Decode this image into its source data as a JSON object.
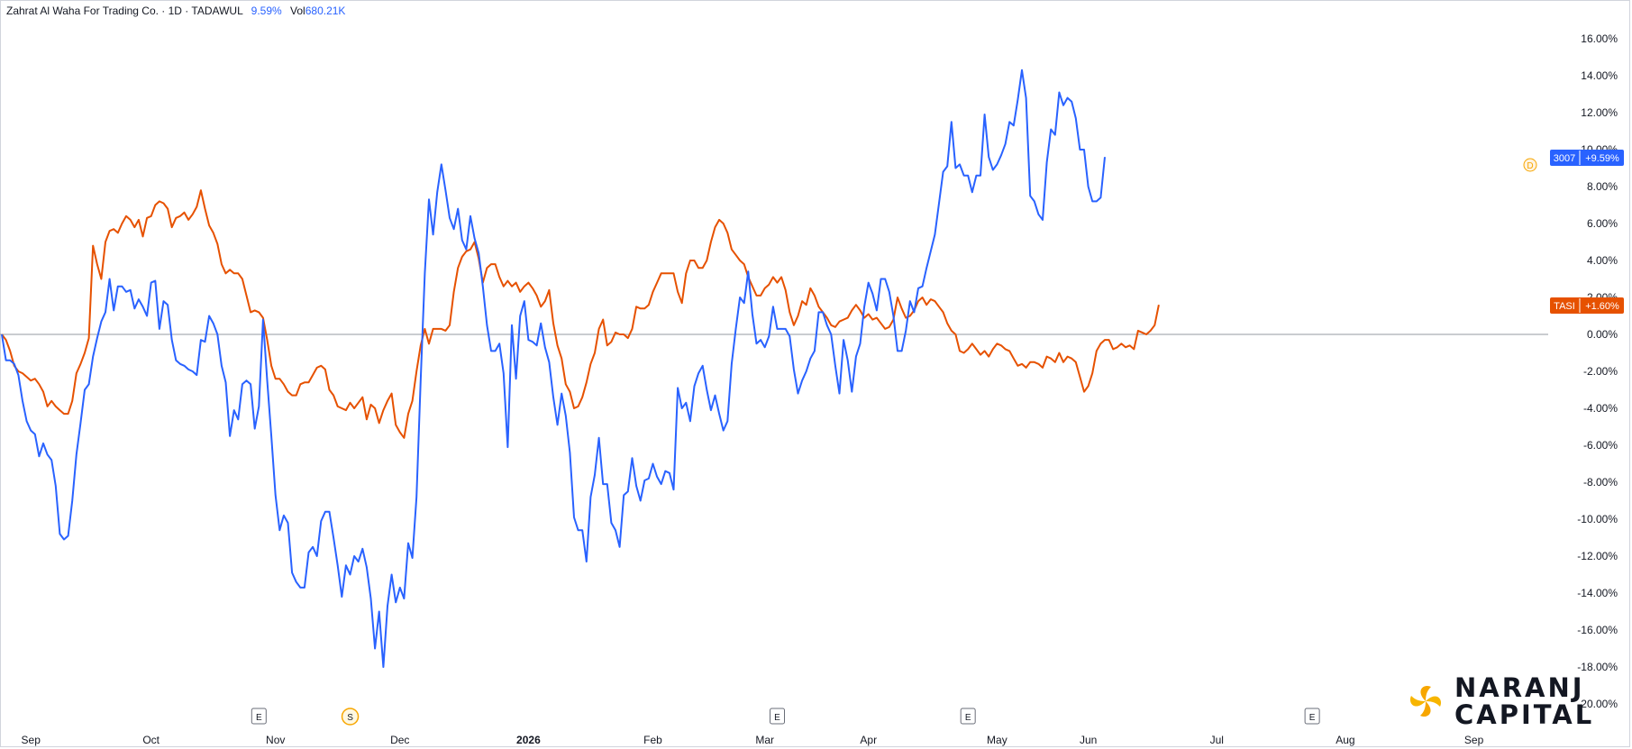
{
  "header": {
    "symbol": "Zahrat Al Waha For Trading Co. · 1D · TADAWUL",
    "change": "9.59%",
    "volume_label": "Vol",
    "volume": "680.21K"
  },
  "tags": {
    "main": {
      "name": "3007",
      "value": "+9.59%",
      "color": "#2962ff"
    },
    "compare": {
      "name": "TASI",
      "value": "+1.60%",
      "color": "#e65100"
    },
    "marker": "D"
  },
  "logo": {
    "line1": "NARANJ",
    "line2": "CAPITAL"
  },
  "colors": {
    "main": "#2962ff",
    "compare": "#e65100",
    "zero_line": "#9598a1",
    "event": "#f7a600"
  },
  "events": [
    {
      "label": "E",
      "x_index": 62
    },
    {
      "label": "S",
      "x_index": 84,
      "color": "#f7a600"
    },
    {
      "label": "E",
      "x_index": 187
    },
    {
      "label": "E",
      "x_index": 233
    },
    {
      "label": "E",
      "x_index": 316
    }
  ],
  "chart_data": {
    "type": "line",
    "ylim": [
      -20,
      16
    ],
    "y_ticks": [
      "16.00%",
      "14.00%",
      "12.00%",
      "10.00%",
      "8.00%",
      "6.00%",
      "4.00%",
      "2.00%",
      "0.00%",
      "-2.00%",
      "-4.00%",
      "-6.00%",
      "-8.00%",
      "-10.00%",
      "-12.00%",
      "-14.00%",
      "-16.00%",
      "-18.00%",
      "-20.00%"
    ],
    "x_ticks": [
      {
        "label": "Sep",
        "index": 7
      },
      {
        "label": "Oct",
        "index": 36
      },
      {
        "label": "Nov",
        "index": 66
      },
      {
        "label": "Dec",
        "index": 96
      },
      {
        "label": "2026",
        "index": 127,
        "bold": true
      },
      {
        "label": "Feb",
        "index": 157
      },
      {
        "label": "Mar",
        "index": 184
      },
      {
        "label": "Apr",
        "index": 209
      },
      {
        "label": "May",
        "index": 240
      },
      {
        "label": "Jun",
        "index": 262
      },
      {
        "label": "Jul",
        "index": 293
      },
      {
        "label": "Aug",
        "index": 324
      },
      {
        "label": "Sep",
        "index": 355
      }
    ],
    "series": [
      {
        "name": "3007",
        "values": [
          0,
          -1.4,
          -1.4,
          -1.6,
          -2.2,
          -3.6,
          -4.7,
          -5.2,
          -5.4,
          -6.6,
          -5.9,
          -6.5,
          -6.8,
          -8.2,
          -10.8,
          -11.1,
          -10.9,
          -9.0,
          -6.5,
          -4.8,
          -3.0,
          -2.7,
          -1.2,
          -0.2,
          0.7,
          1.2,
          3.0,
          1.3,
          2.6,
          2.6,
          2.3,
          2.4,
          1.4,
          1.9,
          1.5,
          1.0,
          2.8,
          2.9,
          0.3,
          1.8,
          1.6,
          -0.3,
          -1.4,
          -1.6,
          -1.7,
          -1.9,
          -2.0,
          -2.2,
          -0.3,
          -0.4,
          1.0,
          0.6,
          0.0,
          -1.7,
          -2.6,
          -5.5,
          -4.1,
          -4.6,
          -2.7,
          -2.5,
          -2.7,
          -5.1,
          -3.9,
          0.8,
          -2.5,
          -5.5,
          -8.7,
          -10.6,
          -9.8,
          -10.2,
          -12.9,
          -13.4,
          -13.7,
          -13.7,
          -11.8,
          -11.5,
          -12.0,
          -10.1,
          -9.6,
          -9.6,
          -11.0,
          -12.5,
          -14.2,
          -12.5,
          -13.0,
          -12.0,
          -12.3,
          -11.6,
          -12.6,
          -14.3,
          -17.0,
          -15.0,
          -18.0,
          -14.7,
          -13.0,
          -14.5,
          -13.7,
          -14.3,
          -11.3,
          -12.1,
          -8.8,
          -2.5,
          3.3,
          7.3,
          5.4,
          7.7,
          9.2,
          7.8,
          6.3,
          5.7,
          6.8,
          5.1,
          4.6,
          6.4,
          5.2,
          4.4,
          2.6,
          0.5,
          -0.9,
          -0.9,
          -0.5,
          -2.1,
          -6.1,
          0.5,
          -2.4,
          1.0,
          1.8,
          -0.3,
          -0.4,
          -0.6,
          0.6,
          -0.7,
          -1.5,
          -3.4,
          -4.9,
          -3.2,
          -4.4,
          -6.4,
          -9.9,
          -10.6,
          -10.6,
          -12.3,
          -8.8,
          -7.6,
          -5.6,
          -8.1,
          -8.1,
          -10.2,
          -10.6,
          -11.5,
          -8.7,
          -8.5,
          -6.7,
          -8.2,
          -9.0,
          -7.9,
          -7.8,
          -7.0,
          -7.7,
          -8.1,
          -7.4,
          -7.5,
          -8.4,
          -2.9,
          -4.0,
          -3.7,
          -4.7,
          -2.8,
          -2.1,
          -1.7,
          -3.0,
          -4.1,
          -3.3,
          -4.3,
          -5.2,
          -4.7,
          -1.6,
          0.3,
          2.0,
          1.7,
          3.4,
          1.1,
          -0.5,
          -0.3,
          -0.7,
          -0.1,
          1.5,
          0.3,
          0.3,
          0.3,
          -0.1,
          -1.9,
          -3.2,
          -2.5,
          -2.0,
          -1.3,
          -0.9,
          1.2,
          1.2,
          0.5,
          0.0,
          -1.7,
          -3.2,
          -0.3,
          -1.4,
          -3.1,
          -1.2,
          -0.5,
          1.5,
          2.8,
          2.2,
          1.3,
          3.0,
          3.0,
          2.3,
          1.0,
          -0.9,
          -0.9,
          0.2,
          1.8,
          1.2,
          2.5,
          2.6,
          3.6,
          4.5,
          5.4,
          7.1,
          8.8,
          9.1,
          11.5,
          9.0,
          9.2,
          8.6,
          8.6,
          7.7,
          8.6,
          8.6,
          11.9,
          9.6,
          8.9,
          9.2,
          9.7,
          10.3,
          11.5,
          11.3,
          12.7,
          14.3,
          12.8,
          7.5,
          7.2,
          6.5,
          6.2,
          9.3,
          11.1,
          10.8,
          13.1,
          12.4,
          12.8,
          12.6,
          11.7,
          10.0,
          10.0,
          8.0,
          7.2,
          7.2,
          7.4,
          9.6
        ],
        "color": "#2962ff"
      },
      {
        "name": "TASI",
        "values": [
          0,
          -0.3,
          -0.9,
          -1.7,
          -2.0,
          -2.1,
          -2.3,
          -2.5,
          -2.4,
          -2.7,
          -3.1,
          -3.9,
          -3.6,
          -3.9,
          -4.1,
          -4.3,
          -4.3,
          -3.6,
          -2.1,
          -1.6,
          -1.0,
          -0.2,
          4.8,
          3.8,
          3.0,
          5.0,
          5.6,
          5.7,
          5.5,
          6.0,
          6.4,
          6.2,
          5.8,
          6.2,
          5.3,
          6.3,
          6.4,
          7.0,
          7.2,
          7.1,
          6.8,
          5.8,
          6.3,
          6.4,
          6.6,
          6.2,
          6.5,
          6.9,
          7.8,
          6.8,
          5.9,
          5.5,
          4.9,
          3.8,
          3.3,
          3.5,
          3.3,
          3.3,
          3.0,
          2.1,
          1.2,
          1.3,
          1.2,
          0.9,
          -0.3,
          -1.7,
          -2.4,
          -2.4,
          -2.7,
          -3.1,
          -3.3,
          -3.3,
          -2.7,
          -2.6,
          -2.6,
          -2.2,
          -1.8,
          -1.7,
          -1.9,
          -3.0,
          -3.3,
          -3.9,
          -4.0,
          -4.1,
          -3.7,
          -4.0,
          -3.7,
          -3.4,
          -4.6,
          -3.8,
          -4.0,
          -4.8,
          -4.1,
          -3.6,
          -3.2,
          -4.9,
          -5.3,
          -5.6,
          -4.3,
          -3.6,
          -2.0,
          -0.6,
          0.3,
          -0.5,
          0.3,
          0.3,
          0.3,
          0.2,
          0.5,
          2.3,
          3.6,
          4.2,
          4.5,
          4.6,
          5.0,
          4.1,
          2.8,
          3.6,
          3.8,
          3.8,
          3.1,
          2.6,
          2.9,
          2.6,
          2.8,
          2.3,
          2.6,
          2.8,
          2.5,
          2.1,
          1.5,
          1.8,
          2.4,
          0.6,
          -0.6,
          -1.3,
          -2.7,
          -3.1,
          -4.0,
          -3.9,
          -3.4,
          -2.6,
          -1.6,
          -1.0,
          0.3,
          0.8,
          -0.6,
          -0.4,
          0.1,
          0.0,
          0.0,
          -0.2,
          0.3,
          1.5,
          1.4,
          1.4,
          1.6,
          2.3,
          2.8,
          3.3,
          3.3,
          3.3,
          3.3,
          2.3,
          1.7,
          3.3,
          4.0,
          4.0,
          3.6,
          3.6,
          4.0,
          5.0,
          5.8,
          6.2,
          6.0,
          5.5,
          4.6,
          4.3,
          4.0,
          3.8,
          3.1,
          2.6,
          2.1,
          2.1,
          2.5,
          2.7,
          3.1,
          2.8,
          3.1,
          2.4,
          1.2,
          0.5,
          1.0,
          1.8,
          1.6,
          2.5,
          2.1,
          1.5,
          1.2,
          0.9,
          0.5,
          0.4,
          0.7,
          0.8,
          0.9,
          1.3,
          1.6,
          1.3,
          0.9,
          1.1,
          0.8,
          0.9,
          0.6,
          0.3,
          0.4,
          0.8,
          2.0,
          1.4,
          0.9,
          1.0,
          1.3,
          1.8,
          2.0,
          1.6,
          1.9,
          1.8,
          1.5,
          1.2,
          0.6,
          0.2,
          0.0,
          -0.9,
          -1.0,
          -0.8,
          -0.5,
          -0.8,
          -1.1,
          -0.9,
          -1.2,
          -0.8,
          -0.5,
          -0.6,
          -0.8,
          -0.9,
          -1.3,
          -1.7,
          -1.6,
          -1.8,
          -1.5,
          -1.5,
          -1.6,
          -1.8,
          -1.2,
          -1.3,
          -1.5,
          -1.0,
          -1.5,
          -1.2,
          -1.3,
          -1.5,
          -2.3,
          -3.1,
          -2.8,
          -2.1,
          -0.9,
          -0.5,
          -0.3,
          -0.3,
          -0.8,
          -0.7,
          -0.5,
          -0.7,
          -0.6,
          -0.8,
          0.2,
          0.1,
          0.0,
          0.2,
          0.5,
          1.6
        ],
        "color": "#e65100"
      }
    ]
  }
}
